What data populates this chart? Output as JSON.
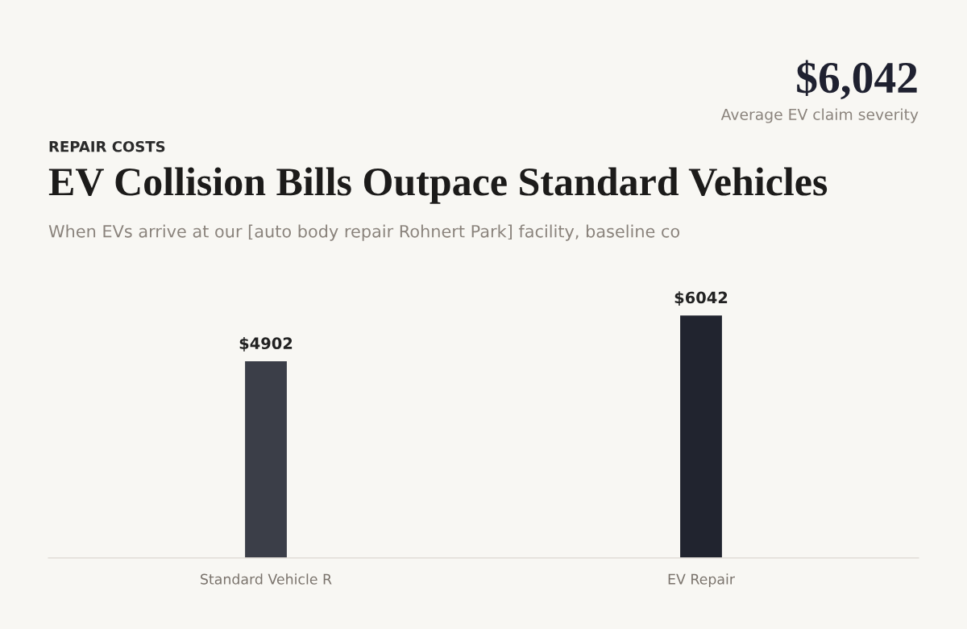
{
  "chart_data": {
    "type": "bar",
    "title": "EV Collision Bills Outpace Standard Vehicles",
    "subtitle": "When EVs arrive at our [auto body repair Rohnert Park] facility, baseline co",
    "annotations": [
      "REPAIR COSTS",
      "$6,042",
      "Average EV claim severity"
    ],
    "categories": [
      "Standard Vehicle R",
      "EV Repair"
    ],
    "values": [
      4902,
      6042
    ],
    "colors": [
      "#3b3e48",
      "#21242f"
    ],
    "value_labels": [
      "$4902",
      "$6042"
    ],
    "grid": false,
    "legend": false
  }
}
